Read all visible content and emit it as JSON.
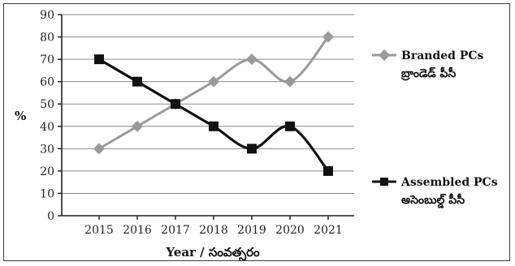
{
  "chart_data": {
    "type": "line",
    "x": [
      "2015",
      "2016",
      "2017",
      "2018",
      "2019",
      "2020",
      "2021"
    ],
    "y_ticks": [
      "0",
      "10",
      "20",
      "30",
      "40",
      "50",
      "60",
      "70",
      "80",
      "90"
    ],
    "ylim": [
      0,
      90
    ],
    "ylabel": "%",
    "xlabel": "Year / సంవత్సరం",
    "grid": true,
    "legend_position": "right",
    "series": [
      {
        "name": "Branded PCs",
        "name_sub": "బ్రాండెడ్ పీసీ",
        "values": [
          30,
          40,
          50,
          60,
          70,
          60,
          80
        ],
        "color": "#9a9a9a",
        "marker": "diamond"
      },
      {
        "name": "Assembled PCs",
        "name_sub": "అసెంబుల్డ్ పీసీ",
        "values": [
          70,
          60,
          50,
          40,
          30,
          40,
          20
        ],
        "color": "#111111",
        "marker": "square"
      }
    ]
  }
}
